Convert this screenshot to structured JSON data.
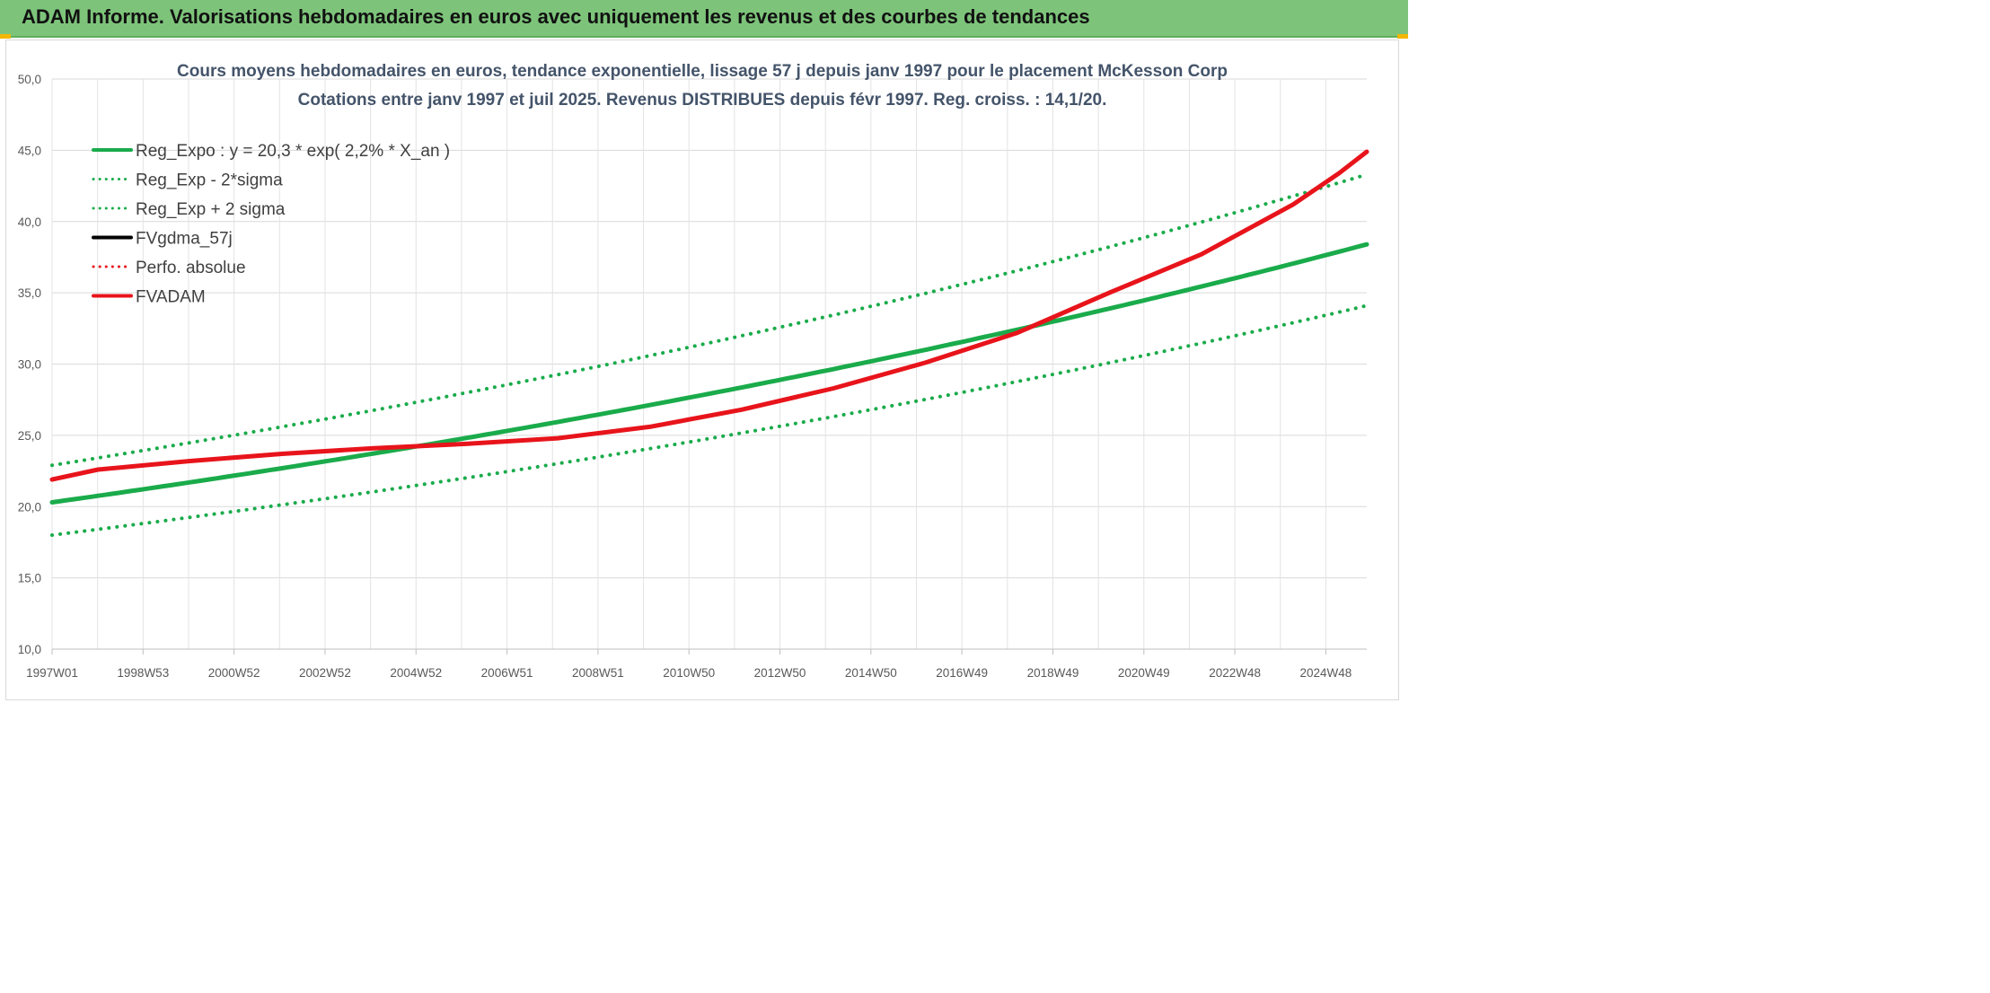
{
  "header": {
    "title": "ADAM Informe. Valorisations hebdomadaires en euros avec uniquement les revenus et des courbes de tendances"
  },
  "colors": {
    "green": "#1aab4b",
    "red": "#e8141b",
    "black": "#000000",
    "header_bg": "#7dc47a"
  },
  "chart_data": {
    "type": "line",
    "title": "Cours moyens hebdomadaires en euros, tendance exponentielle, lissage 57 j depuis janv 1997 pour le placement McKesson Corp",
    "subtitle": "Cotations entre janv 1997 et juil 2025. Revenus DISTRIBUES depuis févr 1997. Reg. croiss. : 14,1/20.",
    "x_tick_labels": [
      "1997W01",
      "1998W53",
      "2000W52",
      "2002W52",
      "2004W52",
      "2006W51",
      "2008W51",
      "2010W50",
      "2012W50",
      "2014W50",
      "2016W49",
      "2018W49",
      "2020W49",
      "2022W48",
      "2024W48"
    ],
    "x_range_years": [
      1997.0,
      2025.6
    ],
    "y_tick_labels": [
      "10,0",
      "15,0",
      "20,0",
      "25,0",
      "30,0",
      "35,0",
      "40,0",
      "45,0",
      "50,0"
    ],
    "ylim": [
      10,
      50
    ],
    "grid": true,
    "legend_position": "top-left",
    "series": [
      {
        "name": "Reg_Expo : y = 20,3 * exp( 2,2% *  X_an )",
        "style": "solid",
        "color": "#1aab4b",
        "x": [
          1997.0,
          2025.6
        ],
        "y": [
          20.3,
          38.4
        ]
      },
      {
        "name": "Reg_Exp - 2*sigma",
        "style": "dotted",
        "color": "#1aab4b",
        "x": [
          1997.0,
          2025.6
        ],
        "y": [
          18.0,
          34.1
        ]
      },
      {
        "name": "Reg_Exp + 2 sigma",
        "style": "dotted",
        "color": "#1aab4b",
        "x": [
          1997.0,
          2025.6
        ],
        "y": [
          22.9,
          43.3
        ]
      },
      {
        "name": "FVgdma_57j",
        "style": "solid",
        "color": "#000000",
        "x": [],
        "y": []
      },
      {
        "name": "Perfo. absolue",
        "style": "dotted",
        "color": "#e8141b",
        "x": [],
        "y": []
      },
      {
        "name": "FVADAM",
        "style": "solid",
        "color": "#e8141b",
        "x": [
          1997.0,
          1998.0,
          2000.0,
          2002.0,
          2004.0,
          2006.0,
          2008.0,
          2010.0,
          2012.0,
          2014.0,
          2016.0,
          2018.0,
          2019.0,
          2020.0,
          2022.0,
          2024.0,
          2025.0,
          2025.6
        ],
        "y": [
          21.9,
          22.6,
          23.2,
          23.7,
          24.1,
          24.4,
          24.8,
          25.6,
          26.8,
          28.3,
          30.1,
          32.2,
          33.6,
          35.0,
          37.7,
          41.2,
          43.4,
          44.9
        ]
      }
    ]
  }
}
